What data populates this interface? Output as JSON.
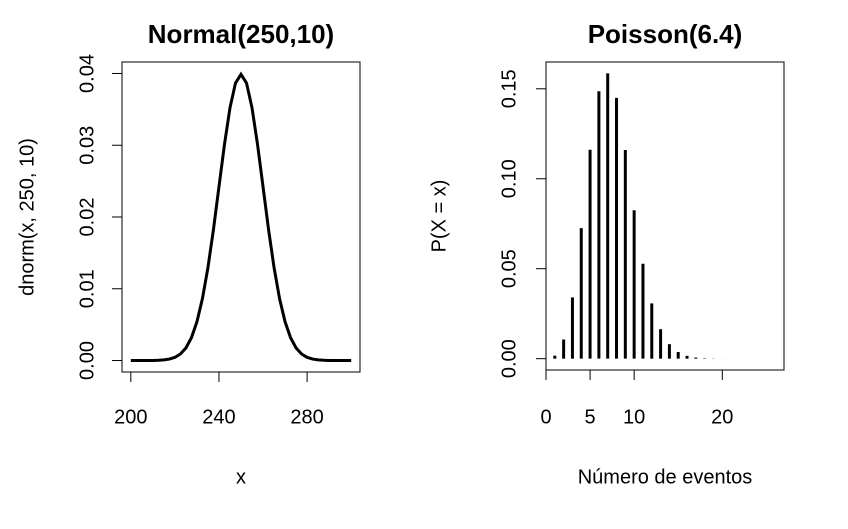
{
  "chart_data": [
    {
      "type": "line",
      "title": "Normal(250,10)",
      "x_label": "x",
      "y_label": "dnorm(x, 250, 10)",
      "color": "#000000",
      "x": [
        200,
        202.5,
        205,
        207.5,
        210,
        212.5,
        215,
        217.5,
        220,
        222.5,
        225,
        227.5,
        230,
        232.5,
        235,
        237.5,
        240,
        242.5,
        245,
        247.5,
        250,
        252.5,
        255,
        257.5,
        260,
        262.5,
        265,
        267.5,
        270,
        272.5,
        275,
        277.5,
        280,
        282.5,
        285,
        287.5,
        290,
        292.5,
        295,
        297.5,
        300
      ],
      "values": [
        0,
        0,
        0,
        0,
        1e-05,
        4e-05,
        9e-05,
        0.0002,
        0.00044,
        0.00091,
        0.00175,
        0.00317,
        0.0054,
        0.00863,
        0.01295,
        0.01826,
        0.0242,
        0.03011,
        0.03521,
        0.03867,
        0.03989,
        0.03867,
        0.03521,
        0.03011,
        0.0242,
        0.01826,
        0.01295,
        0.00863,
        0.0054,
        0.00317,
        0.00175,
        0.00091,
        0.00044,
        0.0002,
        9e-05,
        4e-05,
        1e-05,
        0,
        0,
        0,
        0
      ],
      "xlim": [
        196,
        304
      ],
      "ylim": [
        -0.0016,
        0.0416
      ],
      "xticks": [
        200,
        240,
        280
      ],
      "yticks": [
        {
          "value": 0,
          "label": "0.00"
        },
        {
          "value": 0.01,
          "label": "0.01"
        },
        {
          "value": 0.02,
          "label": "0.02"
        },
        {
          "value": 0.03,
          "label": "0.03"
        },
        {
          "value": 0.04,
          "label": "0.04"
        }
      ]
    },
    {
      "type": "bar",
      "title": "Poisson(6.4)",
      "x_label": "Número de eventos",
      "y_label": "P(X = x)",
      "color": "#000000",
      "x": [
        1,
        2,
        3,
        4,
        5,
        6,
        7,
        8,
        9,
        10,
        11,
        12,
        13,
        14,
        15,
        16,
        17,
        18,
        19,
        20,
        21,
        22,
        23,
        24,
        25,
        26
      ],
      "values": [
        0.001662,
        0.010634,
        0.034029,
        0.072595,
        0.116152,
        0.148674,
        0.158586,
        0.144993,
        0.115994,
        0.082485,
        0.05279,
        0.030714,
        0.016381,
        0.008064,
        0.003687,
        0.001573,
        0.000629,
        0.000237,
        8.4e-05,
        2.8e-05,
        9e-06,
        3e-06,
        1e-06,
        0,
        0,
        0
      ],
      "xlim": [
        0,
        27
      ],
      "ylim": [
        -0.0063,
        0.1649
      ],
      "xticks": [
        0,
        5,
        10,
        20
      ],
      "yticks": [
        {
          "value": 0,
          "label": "0.00"
        },
        {
          "value": 0.05,
          "label": "0.05"
        },
        {
          "value": 0.1,
          "label": "0.10"
        },
        {
          "value": 0.15,
          "label": "0.15"
        }
      ]
    }
  ]
}
